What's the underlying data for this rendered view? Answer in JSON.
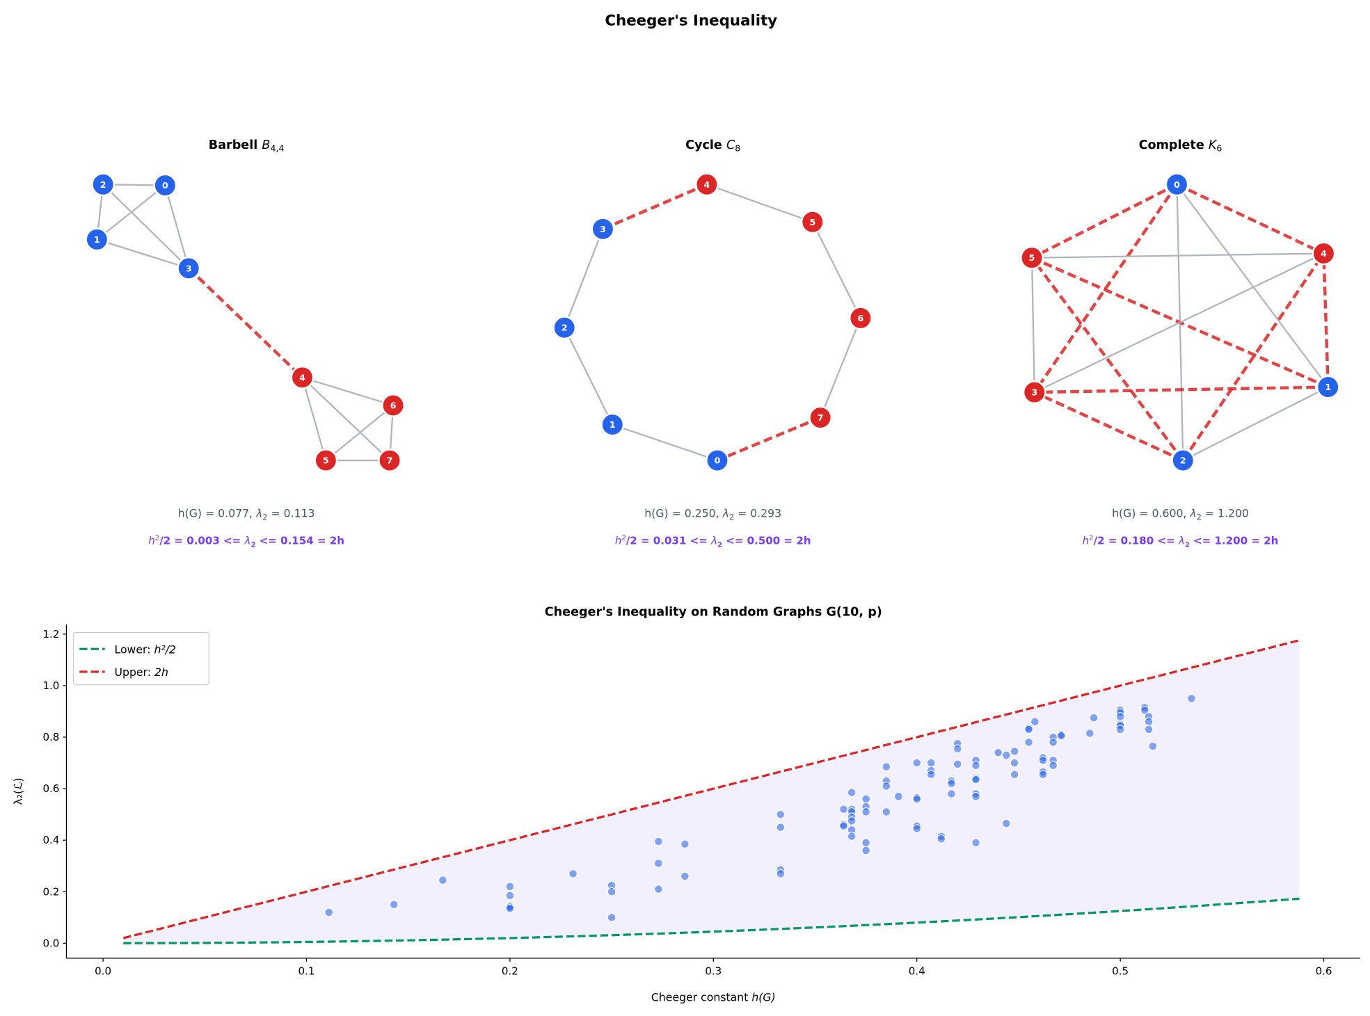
{
  "title": "Cheeger's Inequality",
  "colors": {
    "set_a": "#2563eb",
    "set_b": "#dc2626",
    "edge": "#b0b4bf",
    "cut_edge": "#dc2626",
    "stats_text": "#4a5568",
    "bound_text": "#7c3aed",
    "lower": "#059669",
    "upper": "#dc2626",
    "band": "#ede9fe",
    "points": "#2563eb"
  },
  "panels": [
    {
      "name": "Barbell",
      "sym": "B",
      "sub": "4,4",
      "h": "h(G) = 0.077, ",
      "lam": " = 0.113",
      "lower": "/2 = 0.003 <= ",
      "upper": " <= 0.154 = 2h",
      "nodes": [
        {
          "label": "0",
          "set": "a"
        },
        {
          "label": "1",
          "set": "a"
        },
        {
          "label": "2",
          "set": "a"
        },
        {
          "label": "3",
          "set": "a"
        },
        {
          "label": "4",
          "set": "b"
        },
        {
          "label": "5",
          "set": "b"
        },
        {
          "label": "6",
          "set": "b"
        },
        {
          "label": "7",
          "set": "b"
        }
      ],
      "edges": [
        [
          0,
          1
        ],
        [
          0,
          2
        ],
        [
          0,
          3
        ],
        [
          1,
          2
        ],
        [
          1,
          3
        ],
        [
          2,
          3
        ],
        [
          3,
          4
        ],
        [
          4,
          5
        ],
        [
          4,
          6
        ],
        [
          4,
          7
        ],
        [
          5,
          6
        ],
        [
          5,
          7
        ],
        [
          6,
          7
        ]
      ]
    },
    {
      "name": "Cycle",
      "sym": "C",
      "sub": "8",
      "h": "h(G) = 0.250, ",
      "lam": " = 0.293",
      "lower": "/2 = 0.031 <= ",
      "upper": " <= 0.500 = 2h",
      "nodes": [
        {
          "label": "0",
          "set": "a"
        },
        {
          "label": "1",
          "set": "a"
        },
        {
          "label": "2",
          "set": "a"
        },
        {
          "label": "3",
          "set": "a"
        },
        {
          "label": "4",
          "set": "b"
        },
        {
          "label": "5",
          "set": "b"
        },
        {
          "label": "6",
          "set": "b"
        },
        {
          "label": "7",
          "set": "b"
        }
      ],
      "edges": [
        [
          0,
          1
        ],
        [
          1,
          2
        ],
        [
          2,
          3
        ],
        [
          3,
          4
        ],
        [
          4,
          5
        ],
        [
          5,
          6
        ],
        [
          6,
          7
        ],
        [
          7,
          0
        ]
      ]
    },
    {
      "name": "Complete",
      "sym": "K",
      "sub": "6",
      "h": "h(G) = 0.600, ",
      "lam": " = 1.200",
      "lower": "/2 = 0.180 <= ",
      "upper": " <= 1.200 = 2h",
      "nodes": [
        {
          "label": "0",
          "set": "a"
        },
        {
          "label": "1",
          "set": "a"
        },
        {
          "label": "2",
          "set": "a"
        },
        {
          "label": "3",
          "set": "b"
        },
        {
          "label": "4",
          "set": "b"
        },
        {
          "label": "5",
          "set": "b"
        }
      ],
      "edges": [
        [
          0,
          1
        ],
        [
          0,
          2
        ],
        [
          0,
          3
        ],
        [
          0,
          4
        ],
        [
          0,
          5
        ],
        [
          1,
          2
        ],
        [
          1,
          3
        ],
        [
          1,
          4
        ],
        [
          1,
          5
        ],
        [
          2,
          3
        ],
        [
          2,
          4
        ],
        [
          2,
          5
        ],
        [
          3,
          4
        ],
        [
          3,
          5
        ],
        [
          4,
          5
        ]
      ]
    }
  ],
  "lam_sym": "λ",
  "lam_sub": "2",
  "chart_data": {
    "type": "scatter",
    "title": "Cheeger's Inequality on Random Graphs G(10, p)",
    "xlabel": "Cheeger constant ",
    "xlabel_math": "h(G)",
    "ylabel": "λ₂(ℒ)",
    "xlim": [
      -0.018,
      0.618
    ],
    "ylim": [
      -0.058,
      1.237
    ],
    "xticks": [
      0.0,
      0.1,
      0.2,
      0.3,
      0.4,
      0.5,
      0.6
    ],
    "xtick_labels": [
      "0.0",
      "0.1",
      "0.2",
      "0.3",
      "0.4",
      "0.5",
      "0.6"
    ],
    "yticks": [
      0.0,
      0.2,
      0.4,
      0.6,
      0.8,
      1.0,
      1.2
    ],
    "ytick_labels": [
      "0.0",
      "0.2",
      "0.4",
      "0.6",
      "0.8",
      "1.0",
      "1.2"
    ],
    "curve_range": [
      0.01,
      0.588
    ],
    "legend": {
      "position": "top-left",
      "entries": [
        {
          "text": "Lower: ",
          "math": "h²/2",
          "series": "lower"
        },
        {
          "text": "Upper: ",
          "math": "2h",
          "series": "upper"
        }
      ]
    },
    "series": [
      {
        "name": "Lower: h^2/2",
        "formula": "h^2/2"
      },
      {
        "name": "Upper: 2h",
        "formula": "2h"
      }
    ],
    "points": [
      [
        0.111,
        0.12
      ],
      [
        0.143,
        0.15
      ],
      [
        0.167,
        0.245
      ],
      [
        0.2,
        0.22
      ],
      [
        0.2,
        0.185
      ],
      [
        0.2,
        0.145
      ],
      [
        0.2,
        0.14
      ],
      [
        0.2,
        0.135
      ],
      [
        0.231,
        0.27
      ],
      [
        0.25,
        0.225
      ],
      [
        0.25,
        0.2
      ],
      [
        0.25,
        0.1
      ],
      [
        0.273,
        0.395
      ],
      [
        0.273,
        0.31
      ],
      [
        0.273,
        0.21
      ],
      [
        0.286,
        0.385
      ],
      [
        0.286,
        0.26
      ],
      [
        0.333,
        0.5
      ],
      [
        0.333,
        0.45
      ],
      [
        0.333,
        0.285
      ],
      [
        0.333,
        0.27
      ],
      [
        0.364,
        0.52
      ],
      [
        0.364,
        0.46
      ],
      [
        0.364,
        0.455
      ],
      [
        0.368,
        0.585
      ],
      [
        0.368,
        0.52
      ],
      [
        0.368,
        0.51
      ],
      [
        0.368,
        0.49
      ],
      [
        0.368,
        0.475
      ],
      [
        0.368,
        0.44
      ],
      [
        0.368,
        0.415
      ],
      [
        0.375,
        0.56
      ],
      [
        0.375,
        0.53
      ],
      [
        0.375,
        0.51
      ],
      [
        0.375,
        0.39
      ],
      [
        0.375,
        0.36
      ],
      [
        0.385,
        0.685
      ],
      [
        0.385,
        0.63
      ],
      [
        0.385,
        0.61
      ],
      [
        0.385,
        0.51
      ],
      [
        0.391,
        0.57
      ],
      [
        0.4,
        0.7
      ],
      [
        0.4,
        0.565
      ],
      [
        0.4,
        0.56
      ],
      [
        0.4,
        0.455
      ],
      [
        0.4,
        0.445
      ],
      [
        0.407,
        0.7
      ],
      [
        0.407,
        0.67
      ],
      [
        0.407,
        0.655
      ],
      [
        0.412,
        0.415
      ],
      [
        0.412,
        0.405
      ],
      [
        0.417,
        0.63
      ],
      [
        0.417,
        0.62
      ],
      [
        0.417,
        0.58
      ],
      [
        0.42,
        0.775
      ],
      [
        0.42,
        0.755
      ],
      [
        0.42,
        0.695
      ],
      [
        0.429,
        0.71
      ],
      [
        0.429,
        0.69
      ],
      [
        0.429,
        0.64
      ],
      [
        0.429,
        0.635
      ],
      [
        0.429,
        0.58
      ],
      [
        0.429,
        0.57
      ],
      [
        0.429,
        0.39
      ],
      [
        0.44,
        0.74
      ],
      [
        0.444,
        0.73
      ],
      [
        0.444,
        0.465
      ],
      [
        0.448,
        0.745
      ],
      [
        0.448,
        0.7
      ],
      [
        0.448,
        0.655
      ],
      [
        0.455,
        0.835
      ],
      [
        0.455,
        0.83
      ],
      [
        0.455,
        0.78
      ],
      [
        0.458,
        0.86
      ],
      [
        0.462,
        0.72
      ],
      [
        0.462,
        0.71
      ],
      [
        0.462,
        0.665
      ],
      [
        0.462,
        0.655
      ],
      [
        0.467,
        0.8
      ],
      [
        0.467,
        0.78
      ],
      [
        0.467,
        0.71
      ],
      [
        0.467,
        0.69
      ],
      [
        0.471,
        0.81
      ],
      [
        0.471,
        0.805
      ],
      [
        0.485,
        0.815
      ],
      [
        0.487,
        0.875
      ],
      [
        0.5,
        0.905
      ],
      [
        0.5,
        0.895
      ],
      [
        0.5,
        0.88
      ],
      [
        0.5,
        0.85
      ],
      [
        0.5,
        0.845
      ],
      [
        0.5,
        0.83
      ],
      [
        0.512,
        0.915
      ],
      [
        0.512,
        0.905
      ],
      [
        0.514,
        0.88
      ],
      [
        0.514,
        0.86
      ],
      [
        0.514,
        0.83
      ],
      [
        0.516,
        0.765
      ],
      [
        0.535,
        0.95
      ]
    ]
  }
}
